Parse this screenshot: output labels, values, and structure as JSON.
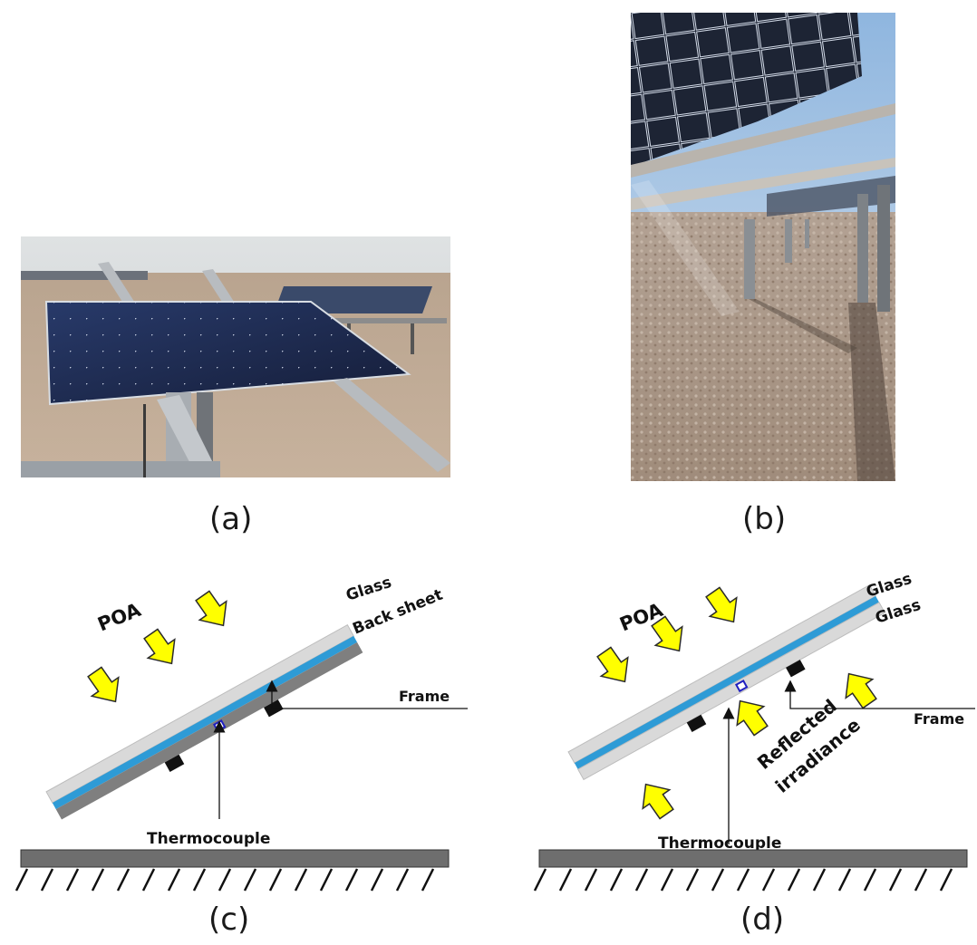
{
  "panels": {
    "a": {
      "label": "(a)"
    },
    "b": {
      "label": "(b)"
    },
    "c": {
      "label": "(c)",
      "poa": "POA",
      "layer_top": "Glass",
      "layer_bottom": "Back sheet",
      "frame": "Frame",
      "thermocouple": "Thermocouple"
    },
    "d": {
      "label": "(d)",
      "poa": "POA",
      "layer_top": "Glass",
      "layer_bottom": "Glass",
      "frame": "Frame",
      "thermocouple": "Thermocouple",
      "reflected_line1": "Reflected",
      "reflected_line2": "irradiance"
    }
  },
  "colors": {
    "glass": "#d9d9d9",
    "cell": "#2e9bd6",
    "backsheet": "#7f7f7f",
    "ground": "#6e6e6e",
    "arrow_fill": "#ffff00",
    "arrow_stroke": "#2b2b2b",
    "thermocouple": "#2020c0"
  }
}
